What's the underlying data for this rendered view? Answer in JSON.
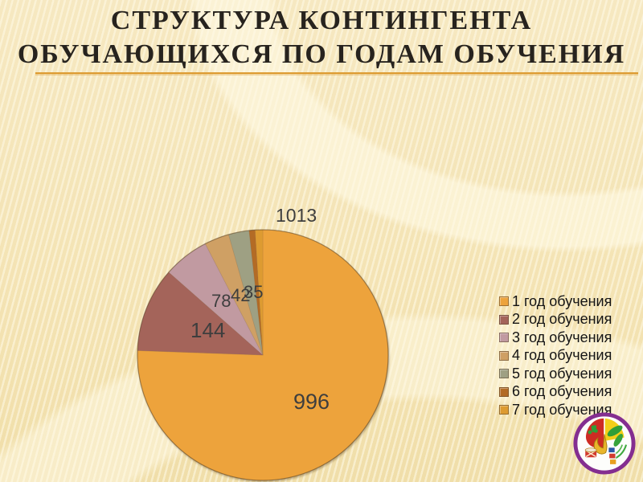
{
  "slide": {
    "title_line1": "СТРУКТУРА КОНТИНГЕНТА",
    "title_line2": "ОБУЧАЮЩИХСЯ ПО ГОДАМ ОБУЧЕНИЯ"
  },
  "theme": {
    "background": "#F4E5B9",
    "title_color": "#27231E",
    "rule_color": "#DD9B31",
    "data_label_color": "#3E3E3E"
  },
  "chart_data": {
    "type": "pie",
    "title": "",
    "categories": [
      "1 год обучения",
      "2 год обучения",
      "3 год обучения",
      "4 год обучения",
      "5 год обучения",
      "6 год обучения",
      "7 год обучения"
    ],
    "values": [
      996,
      144,
      78,
      42,
      35,
      10,
      13
    ],
    "labels": [
      "996",
      "144",
      "78",
      "42",
      "35",
      "10",
      "13"
    ],
    "colors": [
      "#EDA33C",
      "#A4645A",
      "#C19AA1",
      "#CFA064",
      "#9EA083",
      "#B36B25",
      "#DD9B31"
    ],
    "total": 1318,
    "start_angle_deg": 0,
    "direction": "clockwise",
    "legend_position": "right",
    "outside_label_display": "1013"
  }
}
